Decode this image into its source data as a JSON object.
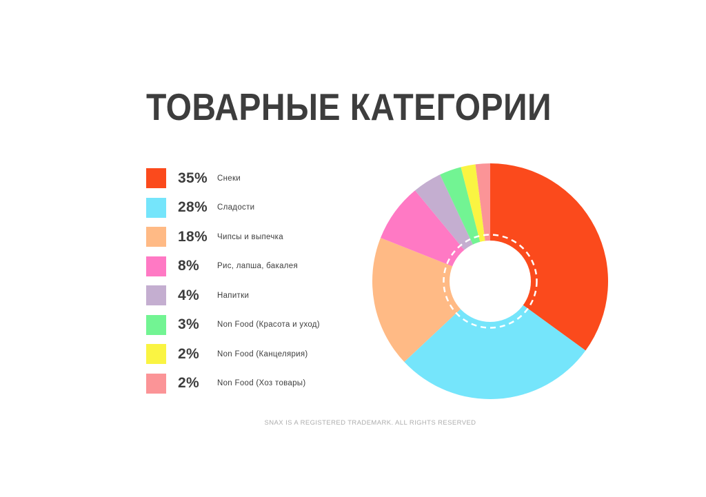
{
  "page": {
    "title": "ТОВАРНЫЕ КАТЕГОРИИ",
    "footer": "SNAX IS A REGISTERED TRADEMARK. ALL RIGHTS RESERVED"
  },
  "colors": {
    "text_dark": "#3d3d3d",
    "footer_gray": "#adadad",
    "background": "#ffffff",
    "donut_ring_stroke": "#ffffff"
  },
  "chart_data": {
    "type": "pie",
    "subtype": "donut",
    "title": "ТОВАРНЫЕ КАТЕГОРИИ",
    "start_angle_deg": 0,
    "direction": "clockwise",
    "legend_position": "left",
    "units": "%",
    "categories": [
      "Снеки",
      "Сладости",
      "Чипсы и выпечка",
      "Рис, лапша, бакалея",
      "Напитки",
      "Non Food (Красота и уход)",
      "Non Food (Канцелярия)",
      "Non Food (Хоз товары)"
    ],
    "values": [
      35,
      28,
      18,
      8,
      4,
      3,
      2,
      2
    ],
    "colors": [
      "#FB4A1C",
      "#75E5FB",
      "#FFBA85",
      "#FF79C4",
      "#C4AED0",
      "#72F493",
      "#FAF442",
      "#FB9497"
    ]
  },
  "legend": {
    "items": [
      {
        "percent": "35%",
        "label": "Снеки",
        "color": "#FB4A1C"
      },
      {
        "percent": "28%",
        "label": "Сладости",
        "color": "#75E5FB"
      },
      {
        "percent": "18%",
        "label": "Чипсы и выпечка",
        "color": "#FFBA85"
      },
      {
        "percent": "8%",
        "label": "Рис, лапша, бакалея",
        "color": "#FF79C4"
      },
      {
        "percent": "4%",
        "label": "Напитки",
        "color": "#C4AED0"
      },
      {
        "percent": "3%",
        "label": "Non Food (Красота и уход)",
        "color": "#72F493"
      },
      {
        "percent": "2%",
        "label": "Non Food (Канцелярия)",
        "color": "#FAF442"
      },
      {
        "percent": "2%",
        "label": "Non Food (Хоз товары)",
        "color": "#FB9497"
      }
    ]
  }
}
